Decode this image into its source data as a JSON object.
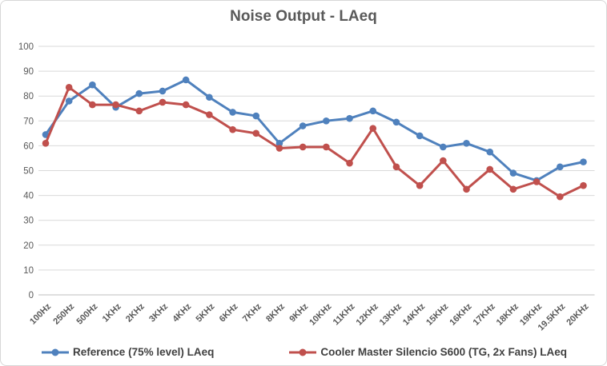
{
  "chart_data": {
    "type": "line",
    "title": "Noise Output - LAeq",
    "categories": [
      "100Hz",
      "250Hz",
      "500Hz",
      "1KHz",
      "2KHz",
      "3KHz",
      "4KHz",
      "5KHz",
      "6KHz",
      "7KHz",
      "8KHz",
      "9KHz",
      "10KHz",
      "11KHz",
      "12KHz",
      "13KHz",
      "14KHz",
      "15KHz",
      "16KHz",
      "17KHz",
      "18KHz",
      "19KHz",
      "19.5KHz",
      "20KHz"
    ],
    "series": [
      {
        "name": "Reference (75% level) LAeq",
        "color": "#4F81BD",
        "values": [
          64.5,
          78,
          84.5,
          75.5,
          81,
          82,
          86.5,
          79.5,
          73.5,
          72,
          61,
          68,
          70,
          71,
          74,
          69.5,
          64,
          59.5,
          61,
          57.5,
          49,
          46,
          51.5,
          53.5
        ]
      },
      {
        "name": "Cooler Master Silencio S600 (TG, 2x Fans) LAeq",
        "color": "#C0504D",
        "values": [
          61,
          83.5,
          76.5,
          76.5,
          74,
          77.5,
          76.5,
          72.5,
          66.5,
          65,
          59,
          59.5,
          59.5,
          53,
          67,
          51.5,
          44,
          54,
          42.5,
          50.5,
          42.5,
          45.5,
          39.5,
          44
        ]
      }
    ],
    "ylim": [
      0,
      100
    ],
    "ytick_step": 10,
    "yticks": [
      "0",
      "10",
      "20",
      "30",
      "40",
      "50",
      "60",
      "70",
      "80",
      "90",
      "100"
    ],
    "grid": true,
    "legend_position": "bottom",
    "xlabel": "",
    "ylabel": "",
    "colors": {
      "gridline": "#D9D9D9",
      "axis_line": "#BFBFBF",
      "tick_label": "#595959",
      "title_text": "#595959",
      "legend_text": "#3F3F3F",
      "background": "#FFFFFF",
      "border": "#D7D7D7"
    }
  }
}
